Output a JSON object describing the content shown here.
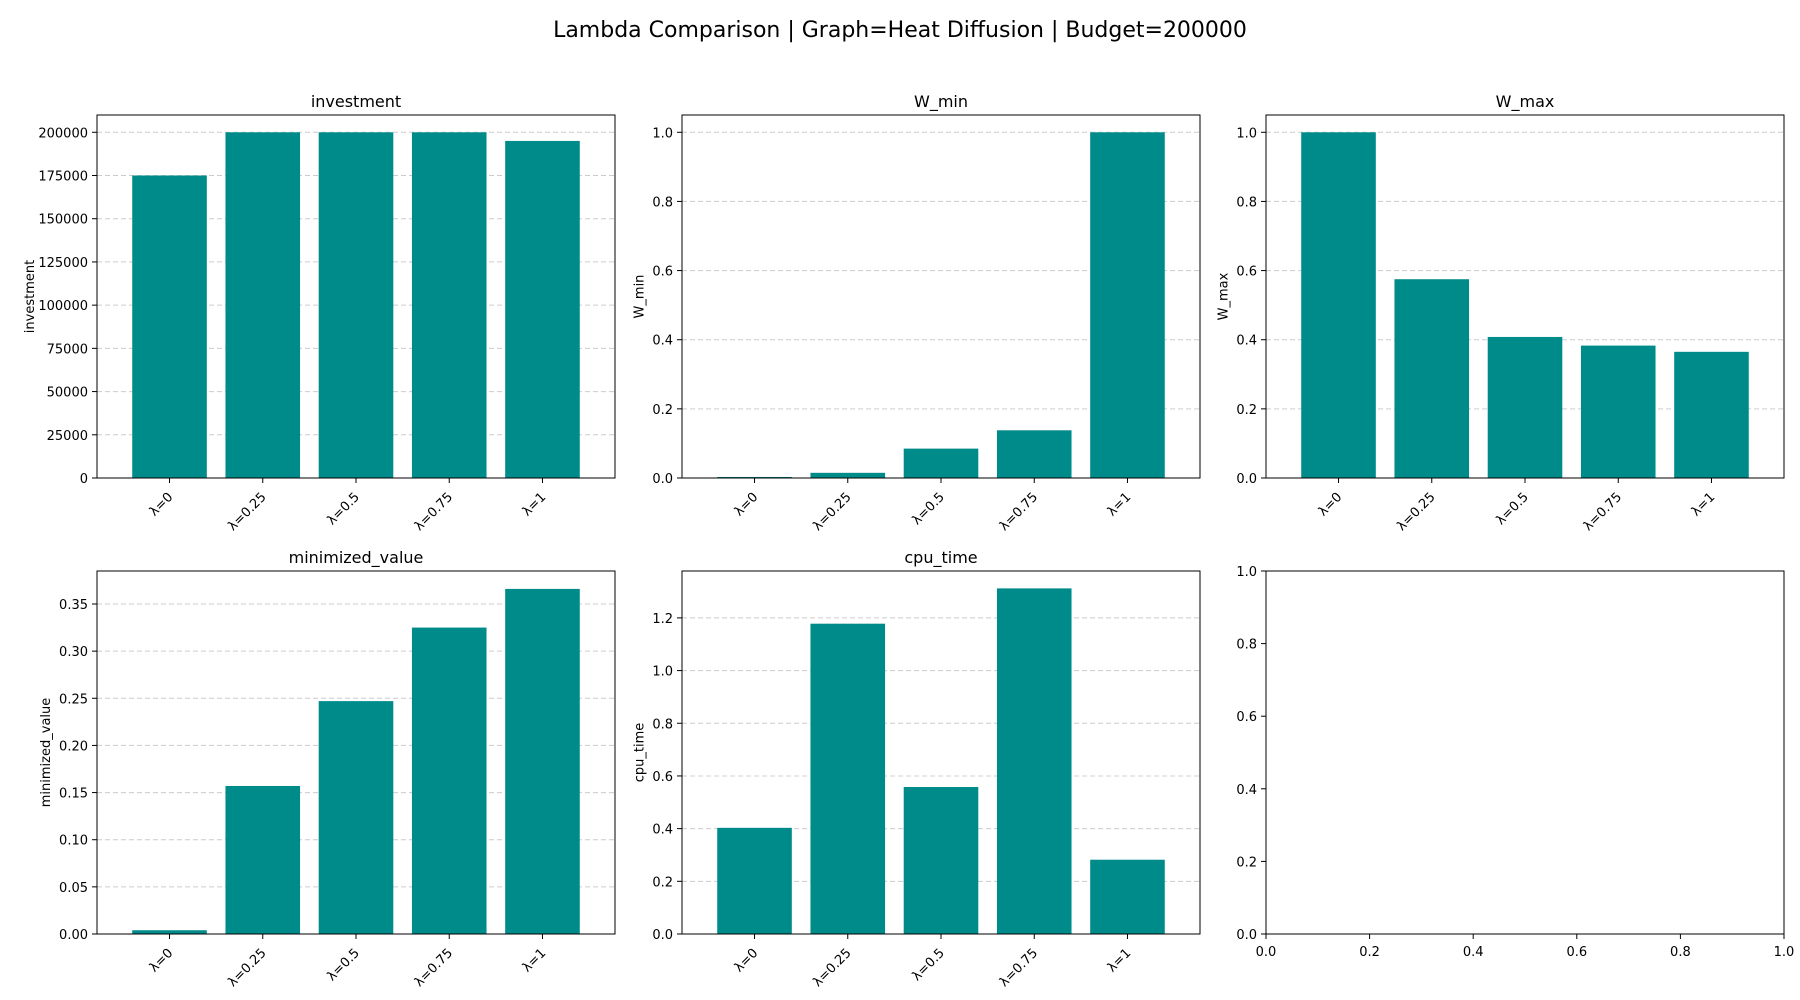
{
  "figure": {
    "title": "Lambda Comparison | Graph=Heat Diffusion | Budget=200000"
  },
  "colors": {
    "bar": "#008b8b",
    "grid": "#cccccc",
    "axis": "#000000",
    "background": "#ffffff"
  },
  "chart_data": [
    {
      "type": "bar",
      "title": "investment",
      "xlabel": "",
      "ylabel": "investment",
      "categories": [
        "λ=0",
        "λ=0.25",
        "λ=0.5",
        "λ=0.75",
        "λ=1"
      ],
      "values": [
        175000,
        200000,
        200000,
        200000,
        195000
      ],
      "ylim": [
        0,
        210000
      ],
      "yticks": [
        0,
        25000,
        50000,
        75000,
        100000,
        125000,
        150000,
        175000,
        200000
      ],
      "ytick_labels": [
        "0",
        "25000",
        "50000",
        "75000",
        "100000",
        "125000",
        "150000",
        "175000",
        "200000"
      ],
      "grid": "y"
    },
    {
      "type": "bar",
      "title": "W_min",
      "xlabel": "",
      "ylabel": "W_min",
      "categories": [
        "λ=0",
        "λ=0.25",
        "λ=0.5",
        "λ=0.75",
        "λ=1"
      ],
      "values": [
        0.003,
        0.015,
        0.085,
        0.138,
        1.0
      ],
      "ylim": [
        0,
        1.05
      ],
      "yticks": [
        0,
        0.2,
        0.4,
        0.6,
        0.8,
        1.0
      ],
      "ytick_labels": [
        "0.0",
        "0.2",
        "0.4",
        "0.6",
        "0.8",
        "1.0"
      ],
      "grid": "y"
    },
    {
      "type": "bar",
      "title": "W_max",
      "xlabel": "",
      "ylabel": "W_max",
      "categories": [
        "λ=0",
        "λ=0.25",
        "λ=0.5",
        "λ=0.75",
        "λ=1"
      ],
      "values": [
        1.0,
        0.575,
        0.408,
        0.383,
        0.365
      ],
      "ylim": [
        0,
        1.05
      ],
      "yticks": [
        0,
        0.2,
        0.4,
        0.6,
        0.8,
        1.0
      ],
      "ytick_labels": [
        "0.0",
        "0.2",
        "0.4",
        "0.6",
        "0.8",
        "1.0"
      ],
      "grid": "y"
    },
    {
      "type": "bar",
      "title": "minimized_value",
      "xlabel": "",
      "ylabel": "minimized_value",
      "categories": [
        "λ=0",
        "λ=0.25",
        "λ=0.5",
        "λ=0.75",
        "λ=1"
      ],
      "values": [
        0.004,
        0.157,
        0.247,
        0.325,
        0.366
      ],
      "ylim": [
        0,
        0.385
      ],
      "yticks": [
        0,
        0.05,
        0.1,
        0.15,
        0.2,
        0.25,
        0.3,
        0.35
      ],
      "ytick_labels": [
        "0.00",
        "0.05",
        "0.10",
        "0.15",
        "0.20",
        "0.25",
        "0.30",
        "0.35"
      ],
      "grid": "y"
    },
    {
      "type": "bar",
      "title": "cpu_time",
      "xlabel": "",
      "ylabel": "cpu_time",
      "categories": [
        "λ=0",
        "λ=0.25",
        "λ=0.5",
        "λ=0.75",
        "λ=1"
      ],
      "values": [
        0.403,
        1.178,
        0.558,
        1.312,
        0.282
      ],
      "ylim": [
        0,
        1.378
      ],
      "yticks": [
        0,
        0.2,
        0.4,
        0.6,
        0.8,
        1.0,
        1.2
      ],
      "ytick_labels": [
        "0.0",
        "0.2",
        "0.4",
        "0.6",
        "0.8",
        "1.0",
        "1.2"
      ],
      "grid": "y"
    },
    {
      "type": "empty",
      "title": "",
      "xlabel": "",
      "ylabel": "",
      "categories": [],
      "values": [],
      "xlim": [
        0,
        1
      ],
      "ylim": [
        0,
        1
      ],
      "xticks": [
        0,
        0.2,
        0.4,
        0.6,
        0.8,
        1.0
      ],
      "xtick_labels": [
        "0.0",
        "0.2",
        "0.4",
        "0.6",
        "0.8",
        "1.0"
      ],
      "yticks": [
        0,
        0.2,
        0.4,
        0.6,
        0.8,
        1.0
      ],
      "ytick_labels": [
        "0.0",
        "0.2",
        "0.4",
        "0.6",
        "0.8",
        "1.0"
      ],
      "grid": "none"
    }
  ]
}
